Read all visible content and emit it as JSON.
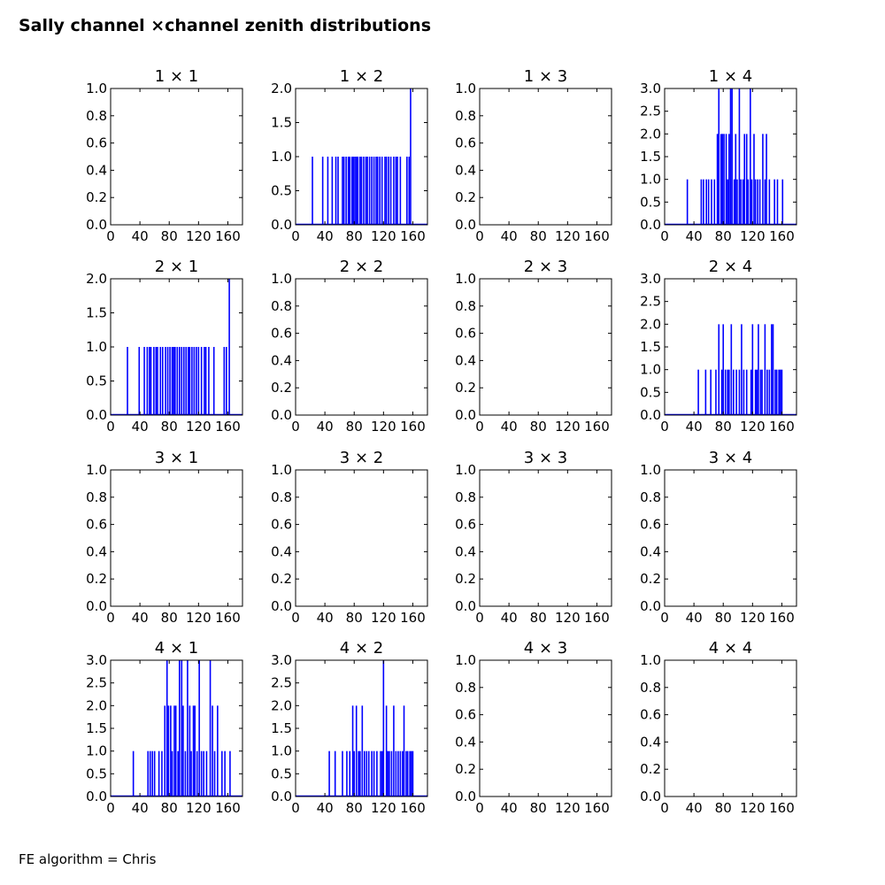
{
  "title": "Sally channel ×channel zenith distributions",
  "footer": "FE algorithm = Chris",
  "colors": {
    "series": "#0000ff",
    "axes": "#000000",
    "background": "#ffffff"
  },
  "chart_data": [
    {
      "type": "bar",
      "title": "1 × 1",
      "xlim": [
        0,
        180
      ],
      "ylim": [
        0,
        1.0
      ],
      "xticks": [
        "0",
        "40",
        "80",
        "120",
        "160"
      ],
      "yticks": [
        "0.0",
        "0.2",
        "0.4",
        "0.6",
        "0.8",
        "1.0"
      ],
      "x": [],
      "values": []
    },
    {
      "type": "bar",
      "title": "1 × 2",
      "xlim": [
        0,
        180
      ],
      "ylim": [
        0,
        2.0
      ],
      "xticks": [
        "0",
        "40",
        "80",
        "120",
        "160"
      ],
      "yticks": [
        "0.0",
        "0.5",
        "1.0",
        "1.5",
        "2.0"
      ],
      "x": [
        23,
        37,
        44,
        50,
        55,
        58,
        64,
        66,
        69,
        72,
        74,
        77,
        79,
        81,
        83,
        85,
        88,
        90,
        93,
        96,
        98,
        101,
        104,
        107,
        110,
        112,
        115,
        118,
        122,
        124,
        127,
        130,
        134,
        137,
        139,
        143,
        152,
        155,
        157
      ],
      "values": [
        1,
        1,
        1,
        1,
        1,
        1,
        1,
        1,
        1,
        1,
        1,
        1,
        1,
        1,
        1,
        1,
        1,
        1,
        1,
        1,
        1,
        1,
        1,
        1,
        1,
        1,
        1,
        1,
        1,
        1,
        1,
        1,
        1,
        1,
        1,
        1,
        1,
        1,
        2
      ]
    },
    {
      "type": "bar",
      "title": "1 × 3",
      "xlim": [
        0,
        180
      ],
      "ylim": [
        0,
        1.0
      ],
      "xticks": [
        "0",
        "40",
        "80",
        "120",
        "160"
      ],
      "yticks": [
        "0.0",
        "0.2",
        "0.4",
        "0.6",
        "0.8",
        "1.0"
      ],
      "x": [],
      "values": []
    },
    {
      "type": "bar",
      "title": "1 × 4",
      "xlim": [
        0,
        180
      ],
      "ylim": [
        0,
        3.0
      ],
      "xticks": [
        "0",
        "40",
        "80",
        "120",
        "160"
      ],
      "yticks": [
        "0.0",
        "0.5",
        "1.0",
        "1.5",
        "2.0",
        "2.5",
        "3.0"
      ],
      "x": [
        31,
        50,
        53,
        57,
        60,
        64,
        68,
        72,
        74,
        77,
        79,
        81,
        84,
        86,
        88,
        90,
        92,
        95,
        97,
        99,
        102,
        104,
        107,
        109,
        112,
        114,
        117,
        119,
        122,
        124,
        127,
        130,
        134,
        137,
        139,
        143,
        150,
        154,
        161
      ],
      "values": [
        1,
        1,
        1,
        1,
        1,
        1,
        1,
        2,
        3,
        2,
        2,
        2,
        2,
        1,
        2,
        3,
        3,
        1,
        2,
        1,
        3,
        1,
        1,
        2,
        2,
        1,
        3,
        1,
        2,
        1,
        1,
        1,
        2,
        1,
        2,
        1,
        1,
        1,
        1
      ]
    },
    {
      "type": "bar",
      "title": "2 × 1",
      "xlim": [
        0,
        180
      ],
      "ylim": [
        0,
        2.0
      ],
      "xticks": [
        "0",
        "40",
        "80",
        "120",
        "160"
      ],
      "yticks": [
        "0.0",
        "0.5",
        "1.0",
        "1.5",
        "2.0"
      ],
      "x": [
        23,
        39,
        46,
        50,
        53,
        55,
        59,
        62,
        64,
        68,
        71,
        75,
        78,
        81,
        84,
        86,
        88,
        91,
        94,
        97,
        100,
        103,
        106,
        108,
        111,
        114,
        117,
        120,
        124,
        128,
        130,
        134,
        141,
        155,
        158,
        162
      ],
      "values": [
        1,
        1,
        1,
        1,
        1,
        1,
        1,
        1,
        1,
        1,
        1,
        1,
        1,
        1,
        1,
        1,
        1,
        1,
        1,
        1,
        1,
        1,
        1,
        1,
        1,
        1,
        1,
        1,
        1,
        1,
        1,
        1,
        1,
        1,
        1,
        2
      ]
    },
    {
      "type": "bar",
      "title": "2 × 2",
      "xlim": [
        0,
        180
      ],
      "ylim": [
        0,
        1.0
      ],
      "xticks": [
        "0",
        "40",
        "80",
        "120",
        "160"
      ],
      "yticks": [
        "0.0",
        "0.2",
        "0.4",
        "0.6",
        "0.8",
        "1.0"
      ],
      "x": [],
      "values": []
    },
    {
      "type": "bar",
      "title": "2 × 3",
      "xlim": [
        0,
        180
      ],
      "ylim": [
        0,
        1.0
      ],
      "xticks": [
        "0",
        "40",
        "80",
        "120",
        "160"
      ],
      "yticks": [
        "0.0",
        "0.2",
        "0.4",
        "0.6",
        "0.8",
        "1.0"
      ],
      "x": [],
      "values": []
    },
    {
      "type": "bar",
      "title": "2 × 4",
      "xlim": [
        0,
        180
      ],
      "ylim": [
        0,
        3.0
      ],
      "xticks": [
        "0",
        "40",
        "80",
        "120",
        "160"
      ],
      "yticks": [
        "0.0",
        "0.5",
        "1.0",
        "1.5",
        "2.0",
        "2.5",
        "3.0"
      ],
      "x": [
        46,
        56,
        63,
        70,
        74,
        78,
        80,
        83,
        86,
        88,
        91,
        94,
        98,
        102,
        105,
        108,
        112,
        118,
        120,
        124,
        126,
        128,
        131,
        133,
        137,
        140,
        143,
        146,
        148,
        151,
        153,
        156,
        158,
        160
      ],
      "values": [
        1,
        1,
        1,
        1,
        2,
        1,
        2,
        1,
        1,
        1,
        2,
        1,
        1,
        1,
        2,
        1,
        1,
        1,
        2,
        1,
        1,
        2,
        1,
        1,
        2,
        1,
        1,
        2,
        2,
        1,
        1,
        1,
        1,
        1
      ]
    },
    {
      "type": "bar",
      "title": "3 × 1",
      "xlim": [
        0,
        180
      ],
      "ylim": [
        0,
        1.0
      ],
      "xticks": [
        "0",
        "40",
        "80",
        "120",
        "160"
      ],
      "yticks": [
        "0.0",
        "0.2",
        "0.4",
        "0.6",
        "0.8",
        "1.0"
      ],
      "x": [],
      "values": []
    },
    {
      "type": "bar",
      "title": "3 × 2",
      "xlim": [
        0,
        180
      ],
      "ylim": [
        0,
        1.0
      ],
      "xticks": [
        "0",
        "40",
        "80",
        "120",
        "160"
      ],
      "yticks": [
        "0.0",
        "0.2",
        "0.4",
        "0.6",
        "0.8",
        "1.0"
      ],
      "x": [],
      "values": []
    },
    {
      "type": "bar",
      "title": "3 × 3",
      "xlim": [
        0,
        180
      ],
      "ylim": [
        0,
        1.0
      ],
      "xticks": [
        "0",
        "40",
        "80",
        "120",
        "160"
      ],
      "yticks": [
        "0.0",
        "0.2",
        "0.4",
        "0.6",
        "0.8",
        "1.0"
      ],
      "x": [],
      "values": []
    },
    {
      "type": "bar",
      "title": "3 × 4",
      "xlim": [
        0,
        180
      ],
      "ylim": [
        0,
        1.0
      ],
      "xticks": [
        "0",
        "40",
        "80",
        "120",
        "160"
      ],
      "yticks": [
        "0.0",
        "0.2",
        "0.4",
        "0.6",
        "0.8",
        "1.0"
      ],
      "x": [],
      "values": []
    },
    {
      "type": "bar",
      "title": "4 × 1",
      "xlim": [
        0,
        180
      ],
      "ylim": [
        0,
        3.0
      ],
      "xticks": [
        "0",
        "40",
        "80",
        "120",
        "160"
      ],
      "yticks": [
        "0.0",
        "0.5",
        "1.0",
        "1.5",
        "2.0",
        "2.5",
        "3.0"
      ],
      "x": [
        31,
        51,
        54,
        57,
        60,
        66,
        70,
        74,
        77,
        79,
        82,
        84,
        87,
        89,
        92,
        94,
        97,
        99,
        102,
        105,
        108,
        110,
        113,
        115,
        118,
        121,
        124,
        127,
        131,
        136,
        139,
        142,
        146,
        152,
        156,
        163
      ],
      "values": [
        1,
        1,
        1,
        1,
        1,
        1,
        1,
        2,
        3,
        2,
        2,
        1,
        2,
        2,
        1,
        3,
        3,
        2,
        1,
        3,
        2,
        1,
        2,
        2,
        1,
        3,
        1,
        1,
        1,
        3,
        2,
        1,
        2,
        1,
        1,
        1
      ]
    },
    {
      "type": "bar",
      "title": "4 × 2",
      "xlim": [
        0,
        180
      ],
      "ylim": [
        0,
        3.0
      ],
      "xticks": [
        "0",
        "40",
        "80",
        "120",
        "160"
      ],
      "yticks": [
        "0.0",
        "0.5",
        "1.0",
        "1.5",
        "2.0",
        "2.5",
        "3.0"
      ],
      "x": [
        46,
        54,
        64,
        70,
        74,
        78,
        80,
        83,
        86,
        88,
        91,
        94,
        97,
        100,
        104,
        107,
        111,
        116,
        118,
        120,
        124,
        126,
        128,
        131,
        134,
        137,
        140,
        143,
        146,
        148,
        151,
        153,
        156,
        158,
        160
      ],
      "values": [
        1,
        1,
        1,
        1,
        1,
        2,
        1,
        2,
        1,
        1,
        2,
        1,
        1,
        1,
        1,
        1,
        1,
        1,
        1,
        3,
        2,
        1,
        1,
        1,
        2,
        1,
        1,
        1,
        1,
        2,
        1,
        1,
        1,
        1,
        1
      ]
    },
    {
      "type": "bar",
      "title": "4 × 3",
      "xlim": [
        0,
        180
      ],
      "ylim": [
        0,
        1.0
      ],
      "xticks": [
        "0",
        "40",
        "80",
        "120",
        "160"
      ],
      "yticks": [
        "0.0",
        "0.2",
        "0.4",
        "0.6",
        "0.8",
        "1.0"
      ],
      "x": [],
      "values": []
    },
    {
      "type": "bar",
      "title": "4 × 4",
      "xlim": [
        0,
        180
      ],
      "ylim": [
        0,
        1.0
      ],
      "xticks": [
        "0",
        "40",
        "80",
        "120",
        "160"
      ],
      "yticks": [
        "0.0",
        "0.2",
        "0.4",
        "0.6",
        "0.8",
        "1.0"
      ],
      "x": [],
      "values": []
    }
  ]
}
